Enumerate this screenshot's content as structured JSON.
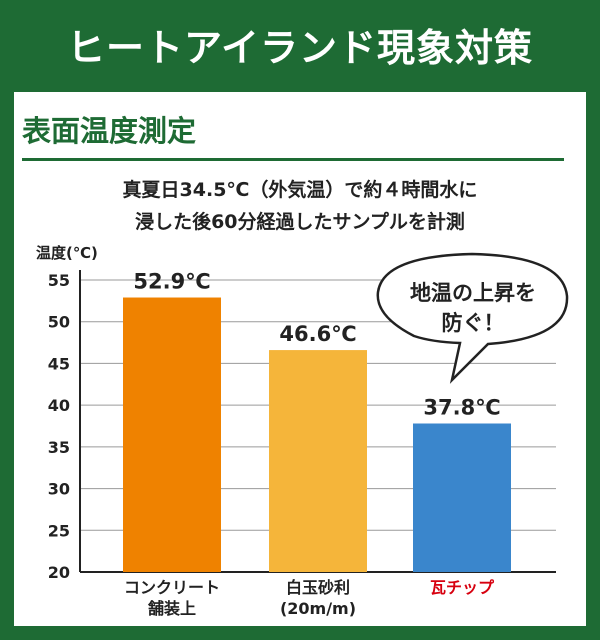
{
  "header": {
    "title": "ヒートアイランド現象対策"
  },
  "section": {
    "title": "表面温度測定"
  },
  "subtitle": {
    "line1": "真夏日34.5℃（外気温）で約４時間水に",
    "line2": "浸した後60分経過したサンプルを計測"
  },
  "callout": {
    "line1": "地温の上昇を",
    "line2": "防ぐ！"
  },
  "colors": {
    "brand_green": "#1e6b34",
    "concrete": "#ef8200",
    "gravel": "#f5b53a",
    "tile": "#3a86cc",
    "highlight_red": "#d7000f"
  },
  "chart_data": {
    "type": "bar",
    "title": "",
    "ylabel": "温度(℃)",
    "xlabel": "",
    "ylim": [
      20,
      55
    ],
    "yticks": [
      20,
      25,
      30,
      35,
      40,
      45,
      50,
      55
    ],
    "grid": true,
    "categories": [
      {
        "line1": "コンクリート",
        "line2": "舗装上"
      },
      {
        "line1": "白玉砂利",
        "line2": "(20m/m)"
      },
      {
        "line1": "瓦チップ",
        "line2": ""
      }
    ],
    "values": [
      52.9,
      46.6,
      37.8
    ],
    "value_labels": [
      "52.9℃",
      "46.6℃",
      "37.8℃"
    ],
    "bar_colors": [
      "#ef8200",
      "#f5b53a",
      "#3a86cc"
    ],
    "label_colors": [
      "#222222",
      "#222222",
      "#d7000f"
    ]
  }
}
